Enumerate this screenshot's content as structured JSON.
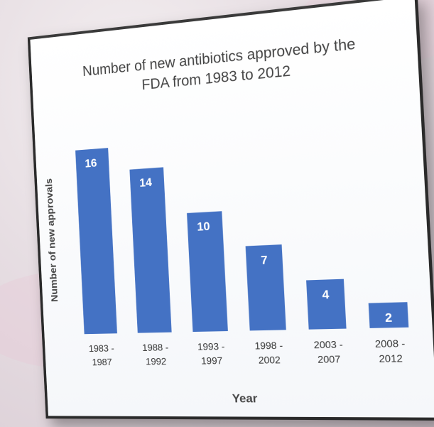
{
  "chart_data": {
    "type": "bar",
    "title_lines": [
      "Number of new antibiotics approved by the",
      "FDA from 1983 to 2012"
    ],
    "xlabel": "Year",
    "ylabel": "Number of new approvals",
    "categories": [
      [
        "1983 -",
        "1987"
      ],
      [
        "1988 -",
        "1992"
      ],
      [
        "1993 -",
        "1997"
      ],
      [
        "1998 -",
        "2002"
      ],
      [
        "2003 -",
        "2007"
      ],
      [
        "2008 -",
        "2012"
      ]
    ],
    "values": [
      16,
      14,
      10,
      7,
      4,
      2
    ],
    "data_labels": [
      "16",
      "14",
      "10",
      "7",
      "4",
      "2"
    ],
    "ylim": [
      0,
      16
    ],
    "grid": false,
    "bar_color": "#4472c4",
    "data_label_color": "#ffffff"
  }
}
